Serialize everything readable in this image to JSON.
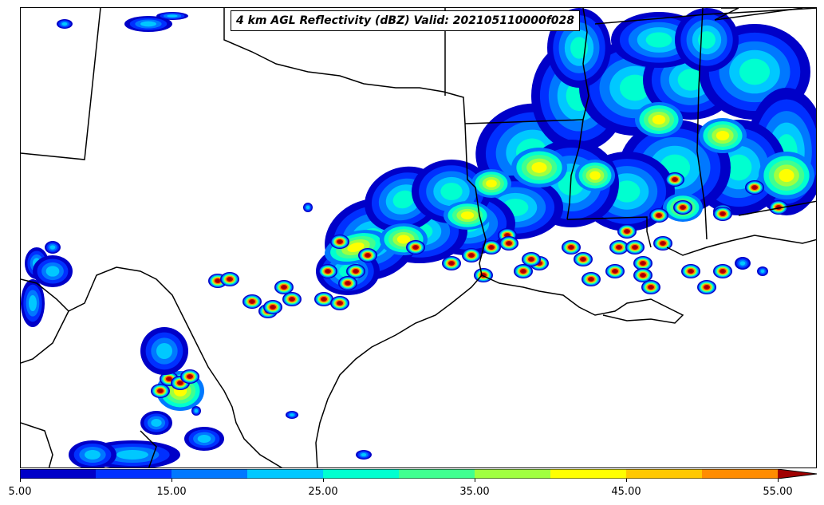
{
  "title": "4 km AGL Reflectivity (dBZ) Valid: 202105110000f028",
  "colorbar": {
    "colors": [
      "#0000c8",
      "#0030ff",
      "#0078ff",
      "#00c8ff",
      "#00ffd0",
      "#40ff90",
      "#a0ff40",
      "#ffff00",
      "#ffc800",
      "#ff8c00",
      "#ff3c00",
      "#c80000",
      "#a00000"
    ],
    "levels": [
      5,
      10,
      15,
      20,
      25,
      30,
      35,
      40,
      45,
      50,
      55
    ],
    "ticks": [
      "5.00",
      "15.00",
      "25.00",
      "35.00",
      "45.00",
      "55.00"
    ],
    "extend": "max"
  },
  "map_data": {
    "region": "Texas, Louisiana, Mississippi, Gulf Coast",
    "field": "reflectivity",
    "units": "dBZ"
  }
}
